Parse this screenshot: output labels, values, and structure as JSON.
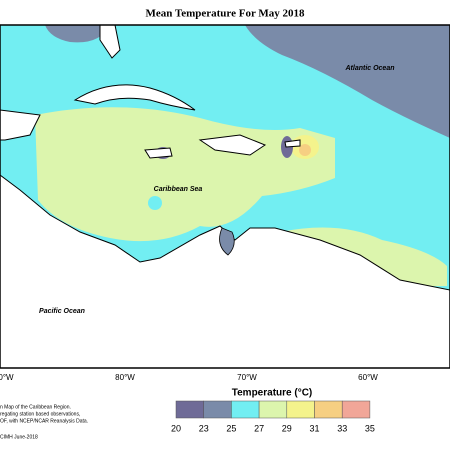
{
  "title": "Mean Temperature For May 2018",
  "map": {
    "labels": [
      "Atlantic Ocean",
      "Caribbean Sea",
      "Pacific Ocean"
    ],
    "longitudes": [
      "0°W",
      "80°W",
      "70°W",
      "60°W"
    ]
  },
  "legend": {
    "title": "Temperature (°C)",
    "ticks": [
      20,
      23,
      25,
      27,
      29,
      31,
      33,
      35
    ],
    "colors": [
      "#6f6b97",
      "#7a8ba9",
      "#72eef2",
      "#dcf5ad",
      "#f4f38c",
      "#f6cf82",
      "#f1a698"
    ]
  },
  "footnote": [
    "n Map of the Caribbean Region.",
    "regating station based observations,",
    "OF, with NCEP/NCAR Reanalysis Data.",
    "CIMH June-2018"
  ]
}
